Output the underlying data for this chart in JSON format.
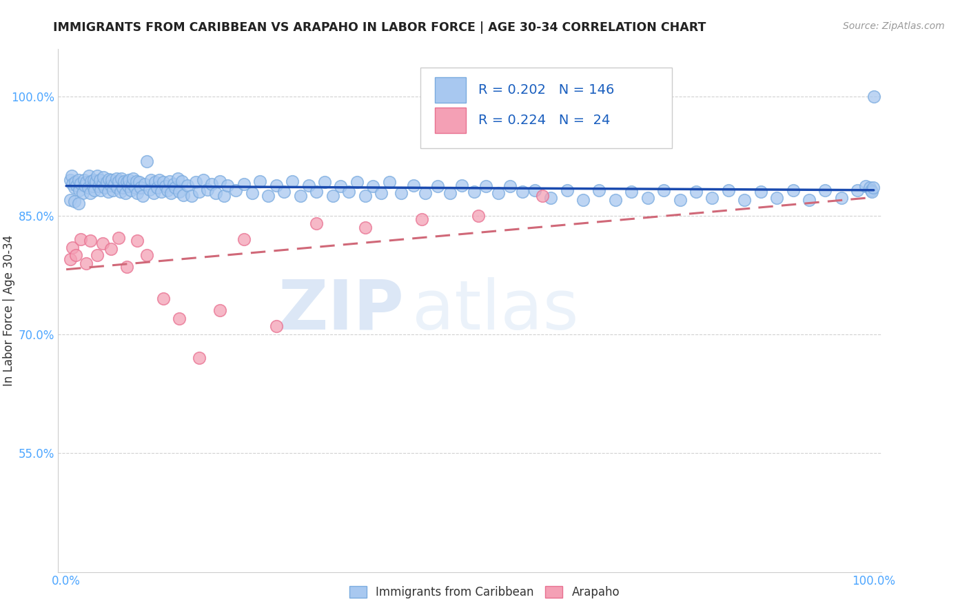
{
  "title": "IMMIGRANTS FROM CARIBBEAN VS ARAPAHO IN LABOR FORCE | AGE 30-34 CORRELATION CHART",
  "source": "Source: ZipAtlas.com",
  "ylabel": "In Labor Force | Age 30-34",
  "xlim": [
    -0.01,
    1.01
  ],
  "ylim": [
    0.4,
    1.06
  ],
  "ytick_positions": [
    0.55,
    0.7,
    0.85,
    1.0
  ],
  "yticklabels": [
    "55.0%",
    "70.0%",
    "85.0%",
    "100.0%"
  ],
  "ytick_color": "#4da6ff",
  "xtick_color": "#4da6ff",
  "blue_R": 0.202,
  "blue_N": 146,
  "pink_R": 0.224,
  "pink_N": 24,
  "blue_marker_color": "#a8c8f0",
  "blue_edge_color": "#7aabdf",
  "pink_marker_color": "#f4a0b5",
  "pink_edge_color": "#e87090",
  "blue_line_color": "#1a4aaf",
  "pink_line_color": "#d06878",
  "legend_text_color": "#1a5fbf",
  "title_color": "#222222",
  "watermark_zip": "ZIP",
  "watermark_atlas": "atlas",
  "background_color": "#ffffff",
  "grid_color": "#cccccc",
  "blue_x": [
    0.005,
    0.007,
    0.008,
    0.01,
    0.011,
    0.013,
    0.015,
    0.016,
    0.018,
    0.02,
    0.022,
    0.023,
    0.025,
    0.027,
    0.028,
    0.03,
    0.031,
    0.033,
    0.034,
    0.035,
    0.037,
    0.038,
    0.04,
    0.042,
    0.043,
    0.045,
    0.046,
    0.048,
    0.05,
    0.052,
    0.053,
    0.055,
    0.056,
    0.058,
    0.06,
    0.062,
    0.063,
    0.065,
    0.067,
    0.068,
    0.07,
    0.072,
    0.073,
    0.075,
    0.077,
    0.078,
    0.08,
    0.082,
    0.083,
    0.085,
    0.087,
    0.088,
    0.09,
    0.092,
    0.095,
    0.097,
    0.1,
    0.103,
    0.105,
    0.108,
    0.11,
    0.113,
    0.115,
    0.118,
    0.12,
    0.123,
    0.125,
    0.128,
    0.13,
    0.133,
    0.135,
    0.138,
    0.14,
    0.143,
    0.145,
    0.15,
    0.155,
    0.16,
    0.165,
    0.17,
    0.175,
    0.18,
    0.185,
    0.19,
    0.195,
    0.2,
    0.21,
    0.22,
    0.23,
    0.24,
    0.25,
    0.26,
    0.27,
    0.28,
    0.29,
    0.3,
    0.31,
    0.32,
    0.33,
    0.34,
    0.35,
    0.36,
    0.37,
    0.38,
    0.39,
    0.4,
    0.415,
    0.43,
    0.445,
    0.46,
    0.475,
    0.49,
    0.505,
    0.52,
    0.535,
    0.55,
    0.565,
    0.58,
    0.6,
    0.62,
    0.64,
    0.66,
    0.68,
    0.7,
    0.72,
    0.74,
    0.76,
    0.78,
    0.8,
    0.82,
    0.84,
    0.86,
    0.88,
    0.9,
    0.92,
    0.94,
    0.96,
    0.98,
    0.99,
    0.995,
    0.997,
    0.998,
    0.999,
    1.0,
    0.005,
    0.01,
    0.015
  ],
  "blue_y": [
    0.895,
    0.9,
    0.89,
    0.885,
    0.892,
    0.888,
    0.895,
    0.882,
    0.891,
    0.878,
    0.895,
    0.888,
    0.892,
    0.885,
    0.9,
    0.878,
    0.893,
    0.887,
    0.895,
    0.882,
    0.893,
    0.9,
    0.887,
    0.895,
    0.882,
    0.89,
    0.898,
    0.885,
    0.892,
    0.88,
    0.896,
    0.888,
    0.895,
    0.882,
    0.89,
    0.897,
    0.885,
    0.893,
    0.88,
    0.897,
    0.885,
    0.893,
    0.878,
    0.892,
    0.887,
    0.895,
    0.882,
    0.89,
    0.897,
    0.885,
    0.893,
    0.878,
    0.892,
    0.885,
    0.875,
    0.89,
    0.918,
    0.883,
    0.895,
    0.878,
    0.892,
    0.885,
    0.895,
    0.88,
    0.892,
    0.887,
    0.882,
    0.893,
    0.878,
    0.89,
    0.885,
    0.897,
    0.88,
    0.893,
    0.876,
    0.888,
    0.875,
    0.892,
    0.88,
    0.895,
    0.883,
    0.89,
    0.878,
    0.893,
    0.875,
    0.888,
    0.882,
    0.89,
    0.878,
    0.893,
    0.875,
    0.888,
    0.88,
    0.893,
    0.875,
    0.888,
    0.88,
    0.892,
    0.875,
    0.887,
    0.88,
    0.892,
    0.875,
    0.887,
    0.878,
    0.892,
    0.878,
    0.888,
    0.878,
    0.887,
    0.878,
    0.888,
    0.88,
    0.887,
    0.878,
    0.887,
    0.88,
    0.882,
    0.872,
    0.882,
    0.87,
    0.882,
    0.87,
    0.88,
    0.872,
    0.882,
    0.87,
    0.88,
    0.872,
    0.882,
    0.87,
    0.88,
    0.872,
    0.882,
    0.87,
    0.882,
    0.872,
    0.882,
    0.887,
    0.885,
    0.882,
    0.88,
    0.885,
    1.0,
    0.87,
    0.868,
    0.865
  ],
  "pink_x": [
    0.005,
    0.008,
    0.012,
    0.018,
    0.025,
    0.03,
    0.038,
    0.045,
    0.055,
    0.065,
    0.075,
    0.088,
    0.1,
    0.12,
    0.14,
    0.165,
    0.19,
    0.22,
    0.26,
    0.31,
    0.37,
    0.44,
    0.51,
    0.59
  ],
  "pink_y": [
    0.795,
    0.81,
    0.8,
    0.82,
    0.79,
    0.818,
    0.8,
    0.815,
    0.808,
    0.822,
    0.785,
    0.818,
    0.8,
    0.745,
    0.72,
    0.67,
    0.73,
    0.82,
    0.71,
    0.84,
    0.835,
    0.845,
    0.85,
    0.875
  ]
}
